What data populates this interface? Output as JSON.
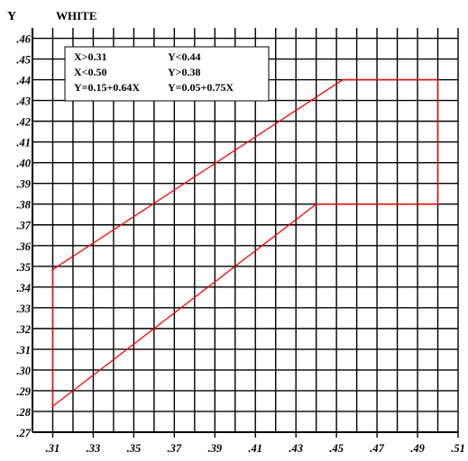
{
  "chart_data": {
    "type": "line",
    "title": "WHITE",
    "ylabel": "Y",
    "xlabel": "",
    "xlim": [
      0.3,
      0.51
    ],
    "ylim": [
      0.27,
      0.465
    ],
    "grid": true,
    "x_ticks": [
      0.31,
      0.33,
      0.35,
      0.37,
      0.39,
      0.41,
      0.43,
      0.45,
      0.47,
      0.49,
      0.51
    ],
    "x_tick_labels": [
      ".31",
      ".33",
      ".35",
      ".37",
      ".39",
      ".41",
      ".43",
      ".45",
      ".47",
      ".49",
      ".51"
    ],
    "y_ticks": [
      0.27,
      0.28,
      0.29,
      0.3,
      0.31,
      0.32,
      0.33,
      0.34,
      0.35,
      0.36,
      0.37,
      0.38,
      0.39,
      0.4,
      0.41,
      0.42,
      0.43,
      0.44,
      0.45,
      0.46
    ],
    "y_tick_labels": [
      ".27",
      ".28",
      ".29",
      ".30",
      ".31",
      ".32",
      ".33",
      ".34",
      ".35",
      ".36",
      ".37",
      ".38",
      ".39",
      ".40",
      ".41",
      ".42",
      ".43",
      ".44",
      ".45",
      ".46"
    ],
    "annotations": [
      "X>0.31",
      "X<0.50",
      "Y=0.15+0.64X",
      "Y<0.44",
      "Y>0.38",
      "Y=0.05+0.75X"
    ],
    "series": [
      {
        "color": "#ff0000",
        "x": [
          0.31,
          0.4531,
          0.5,
          0.5,
          0.44,
          0.31,
          0.31
        ],
        "y": [
          0.3484,
          0.44,
          0.44,
          0.38,
          0.38,
          0.2825,
          0.3484
        ]
      }
    ]
  }
}
